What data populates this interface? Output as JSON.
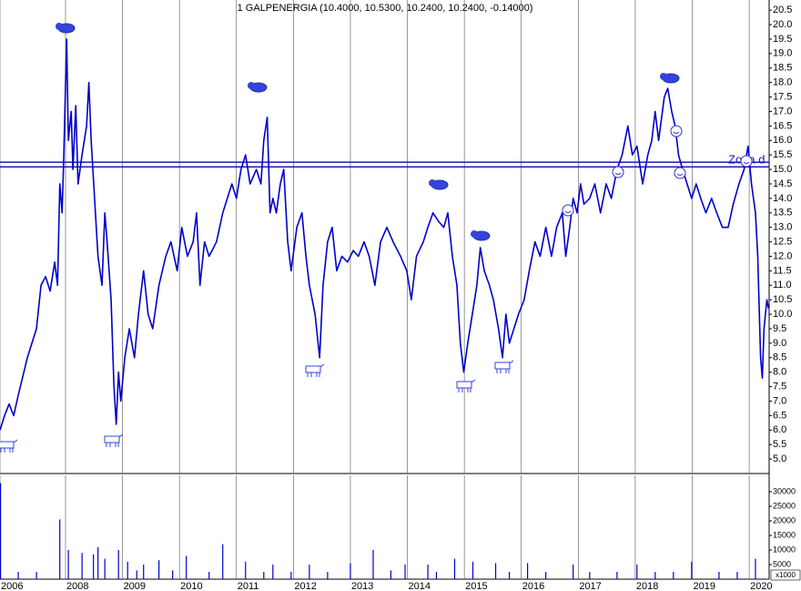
{
  "chart_data": [
    {
      "type": "line",
      "title": "1 GALPENERGIA (10.4000, 10.5300, 10.2400, 10.2400, -0.14000)",
      "annotation": "Zona d",
      "xlim": [
        2006.85,
        2020.35
      ],
      "ylim": [
        4.5,
        20.85
      ],
      "yticks": [
        {
          "value": 5,
          "label": "5.0"
        },
        5.5,
        {
          "value": 6,
          "label": "6.0"
        },
        6.5,
        {
          "value": 7,
          "label": "7.0"
        },
        7.5,
        {
          "value": 8,
          "label": "8.0"
        },
        8.5,
        {
          "value": 9,
          "label": "9.0"
        },
        9.5,
        {
          "value": 10,
          "label": "10.0"
        },
        10.5,
        {
          "value": 11,
          "label": "11.0"
        },
        11.5,
        {
          "value": 12,
          "label": "12.0"
        },
        12.5,
        {
          "value": 13,
          "label": "13.0"
        },
        13.5,
        {
          "value": 14,
          "label": "14.0"
        },
        14.5,
        {
          "value": 15,
          "label": "15.0"
        },
        15.5,
        {
          "value": 16,
          "label": "16.0"
        },
        16.5,
        {
          "value": 17,
          "label": "17.0"
        },
        17.5,
        {
          "value": 18,
          "label": "18.0"
        },
        18.5,
        {
          "value": 19,
          "label": "19.0"
        },
        19.5,
        {
          "value": 20,
          "label": "20.0"
        },
        20.5
      ],
      "hlines": [
        15.25,
        15.09
      ],
      "hline_color": "#1a1ab8",
      "series": [
        {
          "color": "#0000cc",
          "x": [
            2006.85,
            2006.93,
            2007.01,
            2007.09,
            2007.17,
            2007.33,
            2007.49,
            2007.57,
            2007.65,
            2007.73,
            2007.81,
            2007.86,
            2007.9,
            2007.94,
            2007.97,
            2008.02,
            2008.05,
            2008.1,
            2008.13,
            2008.18,
            2008.22,
            2008.29,
            2008.37,
            2008.41,
            2008.45,
            2008.51,
            2008.57,
            2008.64,
            2008.69,
            2008.73,
            2008.8,
            2008.85,
            2008.89,
            2008.93,
            2008.97,
            2009.04,
            2009.12,
            2009.21,
            2009.28,
            2009.37,
            2009.45,
            2009.53,
            2009.64,
            2009.76,
            2009.85,
            2009.96,
            2010.04,
            2010.14,
            2010.24,
            2010.3,
            2010.36,
            2010.44,
            2010.52,
            2010.65,
            2010.76,
            2010.84,
            2010.92,
            2011.0,
            2011.08,
            2011.16,
            2011.24,
            2011.35,
            2011.43,
            2011.48,
            2011.54,
            2011.59,
            2011.64,
            2011.7,
            2011.77,
            2011.83,
            2011.9,
            2011.96,
            2012.06,
            2012.15,
            2012.22,
            2012.28,
            2012.38,
            2012.46,
            2012.52,
            2012.6,
            2012.68,
            2012.76,
            2012.85,
            2012.95,
            2013.05,
            2013.14,
            2013.24,
            2013.33,
            2013.43,
            2013.53,
            2013.64,
            2013.75,
            2013.88,
            2013.99,
            2014.07,
            2014.16,
            2014.28,
            2014.36,
            2014.45,
            2014.55,
            2014.64,
            2014.71,
            2014.79,
            2014.87,
            2014.93,
            2014.99,
            2015.06,
            2015.14,
            2015.22,
            2015.28,
            2015.35,
            2015.44,
            2015.51,
            2015.6,
            2015.67,
            2015.73,
            2015.79,
            2015.87,
            2015.95,
            2016.05,
            2016.14,
            2016.24,
            2016.33,
            2016.43,
            2016.53,
            2016.62,
            2016.72,
            2016.78,
            2016.85,
            2016.91,
            2016.98,
            2017.04,
            2017.1,
            2017.2,
            2017.29,
            2017.39,
            2017.49,
            2017.58,
            2017.68,
            2017.77,
            2017.87,
            2017.95,
            2018.03,
            2018.13,
            2018.22,
            2018.29,
            2018.35,
            2018.41,
            2018.51,
            2018.57,
            2018.64,
            2018.7,
            2018.76,
            2018.83,
            2018.91,
            2018.99,
            2019.07,
            2019.15,
            2019.24,
            2019.34,
            2019.43,
            2019.53,
            2019.63,
            2019.72,
            2019.82,
            2019.91,
            2019.98,
            2020.04,
            2020.11,
            2020.15,
            2020.2,
            2020.23,
            2020.26,
            2020.31,
            2020.34
          ],
          "values": [
            6.0,
            6.5,
            6.9,
            6.5,
            7.2,
            8.5,
            9.5,
            11.0,
            11.3,
            10.8,
            11.8,
            11.0,
            14.5,
            13.5,
            15.5,
            19.5,
            16.0,
            17.0,
            15.0,
            17.2,
            14.5,
            15.5,
            16.5,
            18.0,
            16.0,
            14.0,
            12.0,
            11.0,
            13.5,
            12.5,
            10.5,
            7.5,
            6.2,
            8.0,
            7.0,
            8.5,
            9.5,
            8.5,
            10.0,
            11.5,
            10.0,
            9.5,
            11.0,
            12.0,
            12.5,
            11.5,
            13.0,
            12.0,
            12.5,
            13.5,
            11.0,
            12.5,
            12.0,
            12.5,
            13.5,
            14.0,
            14.5,
            14.0,
            15.0,
            15.5,
            14.5,
            15.0,
            14.5,
            16.0,
            16.8,
            13.5,
            14.0,
            13.5,
            14.5,
            15.0,
            12.5,
            11.5,
            13.0,
            13.5,
            12.0,
            11.0,
            10.0,
            8.5,
            11.0,
            12.5,
            13.0,
            11.5,
            12.0,
            11.8,
            12.2,
            12.0,
            12.5,
            12.0,
            11.0,
            12.5,
            13.0,
            12.5,
            12.0,
            11.5,
            10.5,
            12.0,
            12.5,
            13.0,
            13.5,
            13.2,
            13.0,
            13.5,
            12.0,
            11.0,
            9.0,
            8.0,
            9.0,
            10.0,
            11.0,
            12.3,
            11.5,
            11.0,
            10.5,
            9.5,
            8.5,
            10.0,
            9.0,
            9.5,
            10.0,
            10.5,
            11.5,
            12.5,
            12.0,
            13.0,
            12.0,
            13.0,
            13.5,
            12.0,
            13.0,
            14.0,
            13.5,
            14.5,
            13.8,
            14.0,
            14.5,
            13.5,
            14.5,
            14.0,
            15.0,
            15.5,
            16.5,
            15.5,
            15.8,
            14.5,
            15.5,
            16.0,
            17.0,
            16.0,
            17.5,
            17.8,
            17.0,
            16.5,
            15.5,
            15.0,
            14.5,
            14.0,
            14.5,
            14.0,
            13.5,
            14.0,
            13.5,
            13.0,
            13.0,
            13.8,
            14.5,
            15.0,
            15.8,
            14.5,
            13.5,
            12.0,
            8.5,
            7.8,
            9.5,
            10.5,
            10.2
          ]
        }
      ]
    },
    {
      "type": "bar",
      "unit_label": "x1000",
      "xlim": [
        2006.85,
        2020.35
      ],
      "ylim": [
        0,
        35625
      ],
      "yticks": [
        5000,
        10000,
        15000,
        20000,
        25000,
        30000
      ],
      "xticks": [
        {
          "value": 2006.85,
          "label": "2006"
        },
        {
          "value": 2008,
          "label": "2008"
        },
        {
          "value": 2009,
          "label": "2009"
        },
        {
          "value": 2010,
          "label": "2010"
        },
        {
          "value": 2011,
          "label": "2011"
        },
        {
          "value": 2012,
          "label": "2012"
        },
        {
          "value": 2013,
          "label": "2013"
        },
        {
          "value": 2014,
          "label": "2014"
        },
        {
          "value": 2015,
          "label": "2015"
        },
        {
          "value": 2016,
          "label": "2016"
        },
        {
          "value": 2017,
          "label": "2017"
        },
        {
          "value": 2018,
          "label": "2018"
        },
        {
          "value": 2019,
          "label": "2019"
        },
        {
          "value": 2020,
          "label": "2020"
        }
      ],
      "color": "#0000cc",
      "x": [
        2006.86,
        2007.17,
        2007.49,
        2007.9,
        2008.05,
        2008.29,
        2008.49,
        2008.57,
        2008.69,
        2008.93,
        2009.09,
        2009.25,
        2009.37,
        2009.64,
        2009.88,
        2010.12,
        2010.52,
        2010.76,
        2011.16,
        2011.48,
        2011.64,
        2011.96,
        2012.28,
        2012.6,
        2013.0,
        2013.4,
        2013.71,
        2013.96,
        2014.36,
        2014.51,
        2014.83,
        2015.15,
        2015.55,
        2015.79,
        2016.11,
        2016.43,
        2016.91,
        2017.2,
        2017.68,
        2018.03,
        2018.35,
        2018.67,
        2018.99,
        2019.47,
        2019.79,
        2020.11
      ],
      "values": [
        33000,
        2500,
        2500,
        20500,
        10000,
        9000,
        8500,
        11000,
        7000,
        10000,
        6000,
        3000,
        5000,
        6500,
        3000,
        8000,
        2500,
        12000,
        6000,
        2500,
        5000,
        2500,
        5000,
        2500,
        5500,
        10000,
        3000,
        5000,
        5000,
        2500,
        7000,
        6000,
        5500,
        2500,
        5500,
        2500,
        5000,
        2500,
        2500,
        5000,
        2500,
        2500,
        6000,
        2500,
        2500,
        7000
      ]
    }
  ]
}
